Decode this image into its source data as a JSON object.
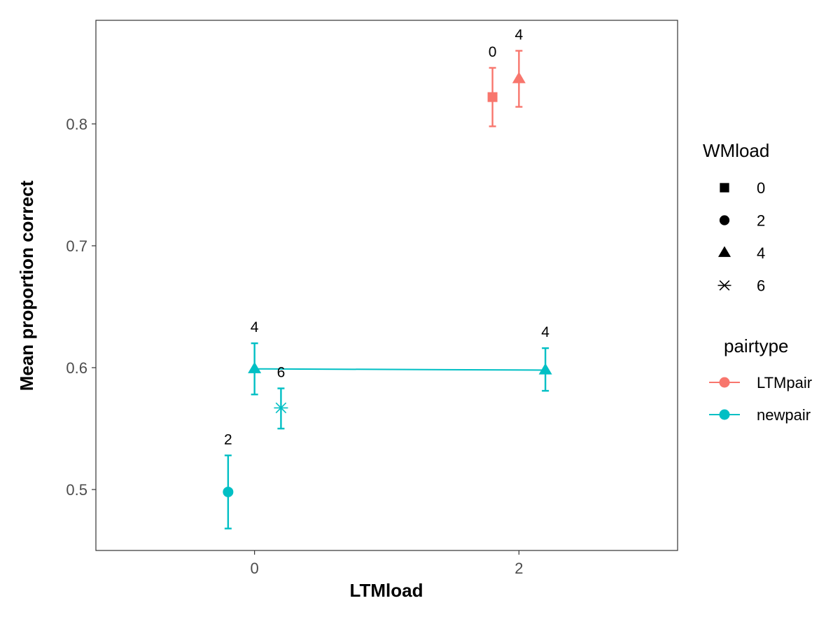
{
  "chart_data": {
    "type": "scatter",
    "title": "",
    "xlabel": "LTMload",
    "ylabel": "Mean proportion correct",
    "xlim": [
      -1.2,
      3.2
    ],
    "ylim": [
      0.45,
      0.885
    ],
    "x_ticks": [
      0,
      2
    ],
    "x_tick_labels": [
      "0",
      "2"
    ],
    "y_ticks": [
      0.5,
      0.6,
      0.7,
      0.8
    ],
    "y_tick_labels": [
      "0.5",
      "0.6",
      "0.7",
      "0.8"
    ],
    "grid": false,
    "series": [
      {
        "name": "LTMpair",
        "color": "#F8766D",
        "connect": false,
        "points": [
          {
            "x": 1.8,
            "y": 0.822,
            "ymin": 0.798,
            "ymax": 0.846,
            "wmload": "0",
            "shape": "square",
            "label": "0"
          },
          {
            "x": 2.0,
            "y": 0.837,
            "ymin": 0.814,
            "ymax": 0.86,
            "wmload": "4",
            "shape": "triangle",
            "label": "4"
          }
        ]
      },
      {
        "name": "newpair",
        "color": "#00BFC4",
        "connect": true,
        "connect_points": [
          1,
          3
        ],
        "points": [
          {
            "x": -0.2,
            "y": 0.498,
            "ymin": 0.468,
            "ymax": 0.528,
            "wmload": "2",
            "shape": "circle",
            "label": "2"
          },
          {
            "x": 0.0,
            "y": 0.599,
            "ymin": 0.578,
            "ymax": 0.62,
            "wmload": "4",
            "shape": "triangle",
            "label": "4"
          },
          {
            "x": 0.2,
            "y": 0.567,
            "ymin": 0.55,
            "ymax": 0.583,
            "wmload": "6",
            "shape": "asterisk",
            "label": "6"
          },
          {
            "x": 2.2,
            "y": 0.598,
            "ymin": 0.581,
            "ymax": 0.616,
            "wmload": "4",
            "shape": "triangle",
            "label": "4"
          }
        ]
      }
    ],
    "legends": [
      {
        "title": "WMload",
        "items": [
          {
            "label": "0",
            "shape": "square"
          },
          {
            "label": "2",
            "shape": "circle"
          },
          {
            "label": "4",
            "shape": "triangle"
          },
          {
            "label": "6",
            "shape": "asterisk"
          }
        ]
      },
      {
        "title": "pairtype",
        "items": [
          {
            "label": "LTMpair",
            "color": "#F8766D"
          },
          {
            "label": "newpair",
            "color": "#00BFC4"
          }
        ]
      }
    ],
    "legend_position": "right"
  }
}
